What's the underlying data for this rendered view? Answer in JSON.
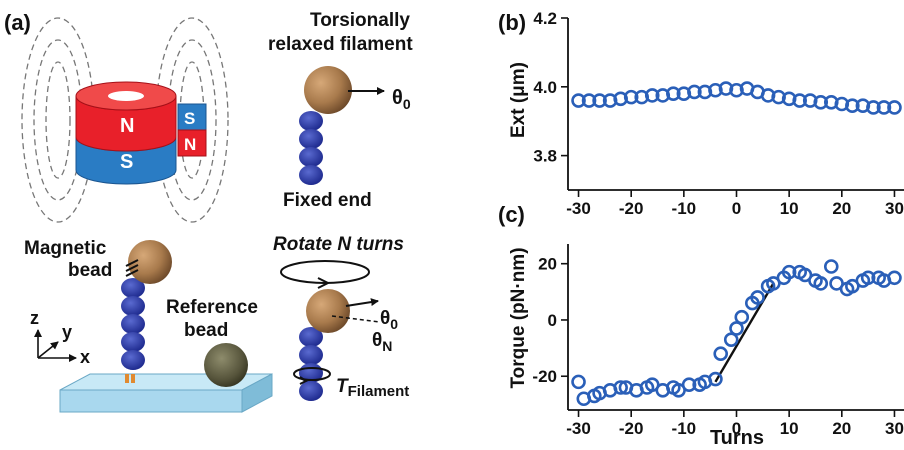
{
  "panel_a": {
    "panel_label": "(a)",
    "magnet_pole_n": "N",
    "magnet_pole_s": "S",
    "title_line1": "Torsionally",
    "title_line2": "relaxed filament",
    "theta0": "θ",
    "theta0_sub": "0",
    "fixed_end": "Fixed end",
    "rotate": "Rotate N turns",
    "magnetic_line1": "Magnetic",
    "magnetic_line2": "bead",
    "reference_line1": "Reference",
    "reference_line2": "bead",
    "axis_z": "z",
    "axis_y": "y",
    "axis_x": "x",
    "thetaN": "θ",
    "thetaN_sub": "N",
    "torque_T": "T",
    "torque_sub": "Filament",
    "colors": {
      "magnet_red": "#e8202a",
      "magnet_blue": "#2a7cc4",
      "bead": "#a87a4c",
      "ref_bead": "#5c5a40",
      "filament": "#2a3aa0",
      "surface": "#a9d8ee"
    }
  },
  "panel_b": {
    "panel_label": "(b)",
    "ylabel": "Ext (μm)"
  },
  "panel_c": {
    "panel_label": "(c)",
    "ylabel": "Torque (pN·nm)",
    "xlabel": "Turns"
  },
  "chart_data": [
    {
      "type": "scatter",
      "panel": "b",
      "xlim": [
        -32,
        32
      ],
      "ylim": [
        3.7,
        4.2
      ],
      "xticks": [
        "-30",
        "-20",
        "-10",
        "0",
        "10",
        "20",
        "30"
      ],
      "xtick_values": [
        -30,
        -20,
        -10,
        0,
        10,
        20,
        30
      ],
      "yticks": [
        "3.8",
        "4.0",
        "4.2"
      ],
      "ytick_values": [
        3.8,
        4.0,
        4.2
      ],
      "marker_color": "#2a5fb8",
      "x": [
        -30,
        -28,
        -26,
        -24,
        -22,
        -20,
        -18,
        -16,
        -14,
        -12,
        -10,
        -8,
        -6,
        -4,
        -2,
        0,
        2,
        4,
        6,
        8,
        10,
        12,
        14,
        16,
        18,
        20,
        22,
        24,
        26,
        28,
        30
      ],
      "y": [
        3.96,
        3.96,
        3.96,
        3.96,
        3.965,
        3.97,
        3.97,
        3.975,
        3.975,
        3.98,
        3.98,
        3.985,
        3.985,
        3.99,
        3.995,
        3.99,
        3.995,
        3.985,
        3.975,
        3.97,
        3.965,
        3.96,
        3.96,
        3.955,
        3.955,
        3.95,
        3.945,
        3.945,
        3.94,
        3.94,
        3.94
      ]
    },
    {
      "type": "scatter",
      "panel": "c",
      "xlim": [
        -32,
        32
      ],
      "ylim": [
        -32,
        27
      ],
      "xticks": [
        "-30",
        "-20",
        "-10",
        "0",
        "10",
        "20",
        "30"
      ],
      "xtick_values": [
        -30,
        -20,
        -10,
        0,
        10,
        20,
        30
      ],
      "yticks": [
        "-20",
        "0",
        "20"
      ],
      "ytick_values": [
        -20,
        0,
        20
      ],
      "marker_color": "#2a5fb8",
      "x": [
        -30,
        -29,
        -27,
        -26,
        -24,
        -22,
        -21,
        -19,
        -17,
        -16,
        -14,
        -12,
        -11,
        -9,
        -7,
        -6,
        -4,
        -3,
        -1,
        0,
        1,
        3,
        4,
        6,
        7,
        9,
        10,
        12,
        13,
        15,
        16,
        18,
        19,
        21,
        22,
        24,
        25,
        27,
        28,
        30
      ],
      "y": [
        -22,
        -28,
        -27,
        -26,
        -25,
        -24,
        -24,
        -25,
        -24,
        -23,
        -25,
        -24,
        -25,
        -23,
        -23,
        -22,
        -21,
        -12,
        -7,
        -3,
        1,
        6,
        8,
        12,
        13,
        15,
        17,
        17,
        16,
        14,
        13,
        19,
        13,
        11,
        12,
        14,
        15,
        15,
        14,
        15
      ],
      "fit_line": {
        "x": [
          -4,
          7
        ],
        "y": [
          -22,
          13
        ]
      }
    }
  ]
}
